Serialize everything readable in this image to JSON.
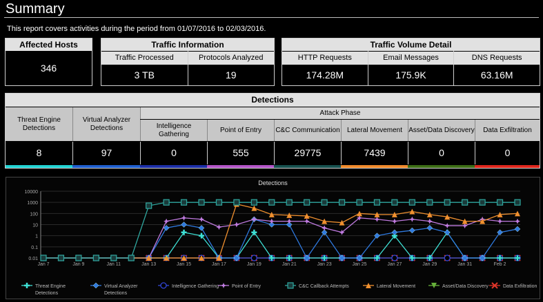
{
  "header": {
    "title": "Summary",
    "period_text": "This report covers activities during the period from 01/07/2016 to 02/03/2016."
  },
  "affected_hosts": {
    "label": "Affected Hosts",
    "value": "346"
  },
  "traffic_info": {
    "title": "Traffic Information",
    "columns": [
      {
        "label": "Traffic Processed",
        "value": "3 TB"
      },
      {
        "label": "Protocols Analyzed",
        "value": "19"
      }
    ]
  },
  "traffic_volume": {
    "title": "Traffic Volume Detail",
    "columns": [
      {
        "label": "HTTP Requests",
        "value": "174.28M"
      },
      {
        "label": "Email Messages",
        "value": "175.9K"
      },
      {
        "label": "DNS Requests",
        "value": "63.16M"
      }
    ]
  },
  "detections": {
    "title": "Detections",
    "attack_phase_label": "Attack Phase",
    "columns": [
      {
        "label": "Threat Engine Detections",
        "value": "8",
        "color": "#22d3d3"
      },
      {
        "label": "Virtual Analyzer Detections",
        "value": "97",
        "color": "#1f5fcf"
      },
      {
        "label": "Intelligence Gathering",
        "value": "0",
        "color": "#1c2fa8"
      },
      {
        "label": "Point of Entry",
        "value": "555",
        "color": "#b455c8"
      },
      {
        "label": "C&C Communication",
        "value": "29775",
        "color": "#17514f"
      },
      {
        "label": "Lateral Movement",
        "value": "7439",
        "color": "#f08a2c"
      },
      {
        "label": "Asset/Data Discovery",
        "value": "0",
        "color": "#3d6e16"
      },
      {
        "label": "Data Exfiltration",
        "value": "0",
        "color": "#e0261c"
      }
    ]
  },
  "chart_data": {
    "type": "line",
    "title": "Detections",
    "yscale": "log",
    "ylim": [
      0.01,
      10000
    ],
    "y_ticks": [
      "0.01",
      "0.1",
      "1",
      "10",
      "100",
      "1000",
      "10000"
    ],
    "x_ticks": [
      "Jan 7",
      "Jan 9",
      "Jan 11",
      "Jan 13",
      "Jan 15",
      "Jan 17",
      "Jan 19",
      "Jan 21",
      "Jan 23",
      "Jan 25",
      "Jan 27",
      "Jan 29",
      "Jan 31",
      "Feb 2"
    ],
    "categories": [
      "Jan 7",
      "Jan 8",
      "Jan 9",
      "Jan 10",
      "Jan 11",
      "Jan 12",
      "Jan 13",
      "Jan 14",
      "Jan 15",
      "Jan 16",
      "Jan 17",
      "Jan 18",
      "Jan 19",
      "Jan 20",
      "Jan 21",
      "Jan 22",
      "Jan 23",
      "Jan 24",
      "Jan 25",
      "Jan 26",
      "Jan 27",
      "Jan 28",
      "Jan 29",
      "Jan 30",
      "Jan 31",
      "Feb 1",
      "Feb 2",
      "Feb 3"
    ],
    "series": [
      {
        "name": "Threat Engine Detections",
        "color": "#3ee0d5",
        "marker": "plus",
        "values": [
          0.01,
          0.01,
          0.01,
          0.01,
          0.01,
          0.01,
          0.01,
          0.01,
          2,
          1,
          0.01,
          0.01,
          2,
          0.01,
          0.01,
          0.01,
          0.01,
          0.01,
          0.01,
          0.01,
          1,
          0.01,
          0.01,
          2,
          0.01,
          0.01,
          0.01,
          0.01
        ]
      },
      {
        "name": "Virtual Analyzer Detections",
        "color": "#2f7ae0",
        "marker": "diamond",
        "values": [
          0.01,
          0.01,
          0.01,
          0.01,
          0.01,
          0.01,
          0.01,
          5,
          10,
          5,
          0.01,
          0.01,
          30,
          10,
          10,
          0.01,
          2,
          0.01,
          0.01,
          1,
          2,
          3,
          5,
          2,
          0.01,
          0.01,
          2,
          4
        ]
      },
      {
        "name": "Intelligence Gathering",
        "color": "#3346d8",
        "marker": "circle",
        "values": [
          0.01,
          0.01,
          0.01,
          0.01,
          0.01,
          0.01,
          0.01,
          0.01,
          0.01,
          0.01,
          0.01,
          0.01,
          0.01,
          0.01,
          0.01,
          0.01,
          0.01,
          0.01,
          0.01,
          0.01,
          0.01,
          0.01,
          0.01,
          0.01,
          0.01,
          0.01,
          0.01,
          0.01
        ]
      },
      {
        "name": "Point of Entry",
        "color": "#c07be0",
        "marker": "star",
        "values": [
          0.01,
          0.01,
          0.01,
          0.01,
          0.01,
          0.01,
          0.01,
          20,
          40,
          30,
          6,
          10,
          30,
          20,
          20,
          20,
          5,
          2,
          40,
          30,
          20,
          30,
          20,
          8,
          8,
          30,
          20,
          20
        ]
      },
      {
        "name": "C&C Callback Attempts",
        "color": "#2fa8a0",
        "marker": "square",
        "values": [
          0.01,
          0.01,
          0.01,
          0.01,
          0.01,
          0.01,
          500,
          1000,
          1000,
          1000,
          1000,
          1000,
          1000,
          1000,
          1000,
          1000,
          1000,
          1000,
          1000,
          1000,
          1000,
          1000,
          1000,
          1000,
          1000,
          1000,
          1000,
          1000
        ]
      },
      {
        "name": "Lateral Movement",
        "color": "#f0902f",
        "marker": "triangle",
        "values": [
          0.01,
          0.01,
          0.01,
          0.01,
          0.01,
          0.01,
          0.01,
          0.01,
          0.01,
          0.01,
          0.01,
          700,
          300,
          80,
          70,
          60,
          20,
          15,
          100,
          80,
          80,
          150,
          80,
          50,
          20,
          20,
          80,
          100
        ]
      },
      {
        "name": "Asset/Data Discovery",
        "color": "#66b03a",
        "marker": "triangle-down",
        "values": [
          0.01,
          0.01,
          0.01,
          0.01,
          0.01,
          0.01,
          0.01,
          0.01,
          0.01,
          0.01,
          0.01,
          0.01,
          0.01,
          0.01,
          0.01,
          0.01,
          0.01,
          0.01,
          0.01,
          0.01,
          0.01,
          0.01,
          0.01,
          0.01,
          0.01,
          0.01,
          0.01,
          0.01
        ]
      },
      {
        "name": "Data Exfiltration",
        "color": "#e0352a",
        "marker": "cross",
        "values": [
          0.01,
          0.01,
          0.01,
          0.01,
          0.01,
          0.01,
          0.01,
          0.01,
          0.01,
          0.01,
          0.01,
          0.01,
          0.01,
          0.01,
          0.01,
          0.01,
          0.01,
          0.01,
          0.01,
          0.01,
          0.01,
          0.01,
          0.01,
          0.01,
          0.01,
          0.01,
          0.01,
          0.01
        ]
      }
    ],
    "legend": [
      {
        "label": "Threat Engine Detections"
      },
      {
        "label": "Virtual Analyzer Detections"
      },
      {
        "label": "Intelligence Gathering"
      },
      {
        "label": "Point of Entry"
      },
      {
        "label": "C&C Callback Attempts"
      },
      {
        "label": "Lateral Movement"
      },
      {
        "label": "Asset/Data Discovery"
      },
      {
        "label": "Data Exfiltration"
      }
    ],
    "legend_placement": "bottom"
  }
}
